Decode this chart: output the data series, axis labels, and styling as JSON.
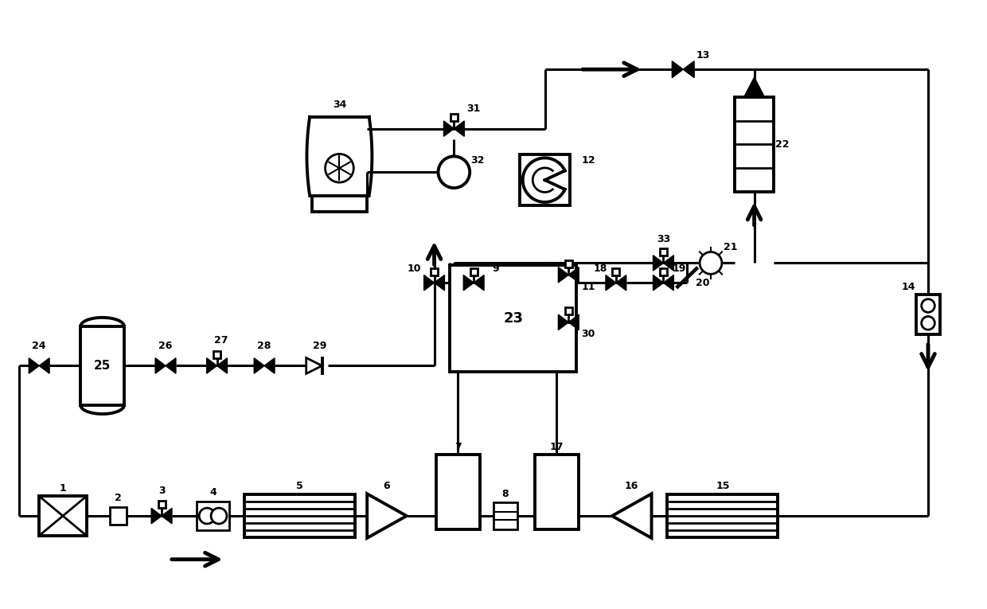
{
  "bg_color": "#ffffff",
  "lw": 2.0,
  "lw_thick": 2.8,
  "lw_pipe": 2.2,
  "fig_width": 12.4,
  "fig_height": 7.65,
  "xlim": [
    0,
    124
  ],
  "ylim": [
    0,
    76.5
  ]
}
